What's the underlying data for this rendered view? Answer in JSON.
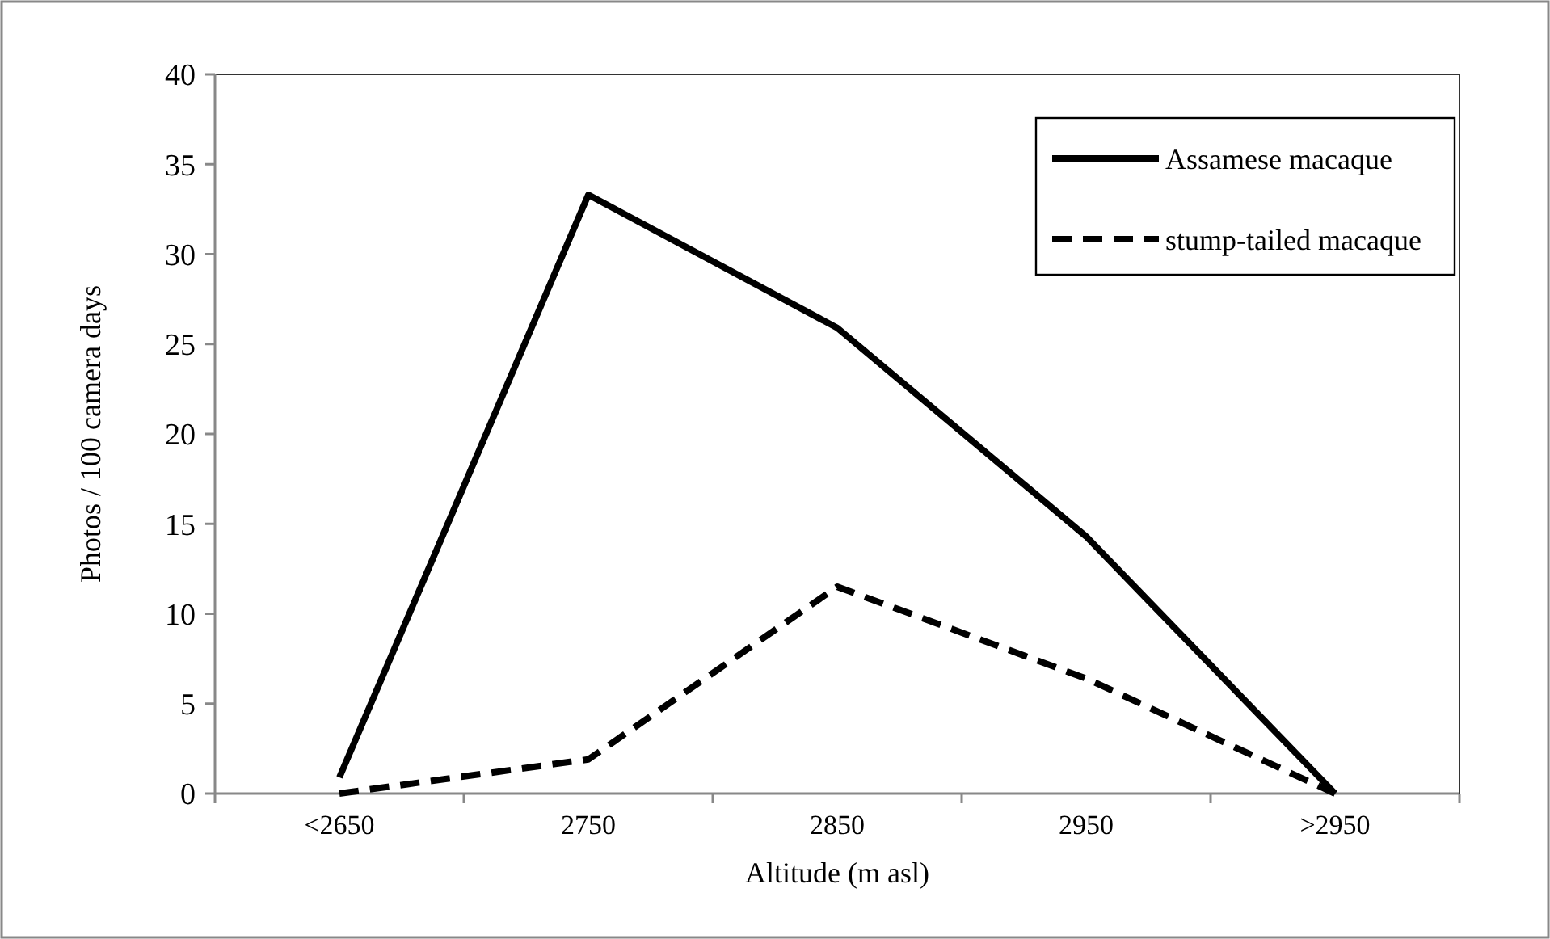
{
  "chart_data": {
    "type": "line",
    "xlabel": "Altitude (m asl)",
    "ylabel": "Photos / 100 camera days",
    "categories": [
      "<2650",
      "2750",
      "2850",
      "2950",
      ">2950"
    ],
    "series": [
      {
        "name": "Assamese macaque",
        "color": "#000000",
        "values": [
          0.9,
          33.3,
          25.9,
          14.3,
          0
        ],
        "line_style": "solid"
      },
      {
        "name": "stump-tailed macaque",
        "color": "#000000",
        "values": [
          0,
          1.9,
          11.5,
          6.4,
          0
        ],
        "line_style": "dashed"
      }
    ],
    "ylim": [
      0,
      40
    ],
    "yticks": [
      0,
      5,
      10,
      15,
      20,
      25,
      30,
      35,
      40
    ],
    "grid": false,
    "legend": "top right",
    "marker": "none"
  }
}
